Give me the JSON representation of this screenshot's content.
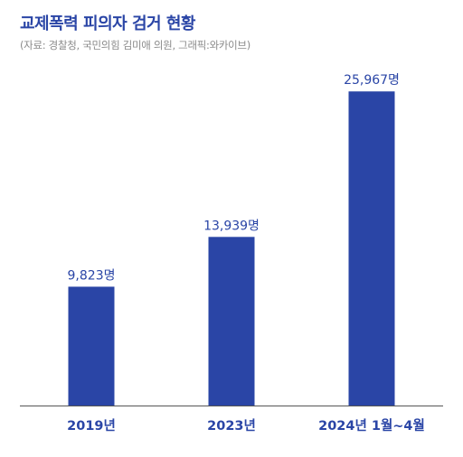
{
  "title": "교제폭력 피의자 검거 현황",
  "subtitle": "(자료: 경찰청, 국민의힘 김미애 의원, 그래픽:와카이브)",
  "colors": {
    "bar": "#2a45a6",
    "title": "#2a45a6",
    "value_label": "#2a45a6",
    "axis": "#555555",
    "category_label": "#2a45a6"
  },
  "chart_data": {
    "type": "bar",
    "categories": [
      "2019년",
      "2023년",
      "2024년 1월~4월"
    ],
    "values": [
      9823,
      13939,
      25967
    ],
    "value_labels": [
      "9,823명",
      "13,939명",
      "25,967명"
    ],
    "ylim": [
      0,
      28000
    ],
    "grid": false,
    "legend": "none"
  }
}
